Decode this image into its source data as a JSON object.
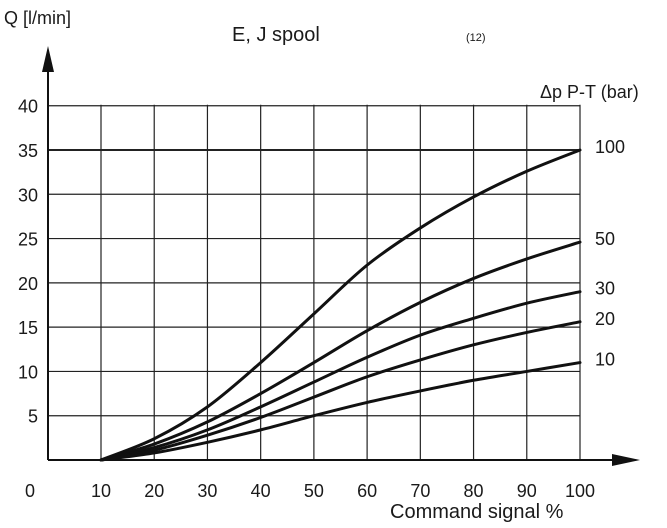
{
  "chart_data": {
    "type": "line",
    "title": "E, J spool",
    "note": "(12)",
    "ylabel": "Q [l/min]",
    "xlabel": "Command signal %",
    "legend_title": "Δp P-T (bar)",
    "x_ticks": [
      "0",
      "10",
      "20",
      "30",
      "40",
      "50",
      "60",
      "70",
      "80",
      "90",
      "100"
    ],
    "y_ticks": [
      "5",
      "10",
      "15",
      "20",
      "25",
      "30",
      "35",
      "40"
    ],
    "xlim": [
      0,
      100
    ],
    "ylim": [
      0,
      40
    ],
    "grid": true,
    "series": [
      {
        "name": "100",
        "x": [
          10,
          20,
          30,
          40,
          50,
          60,
          70,
          80,
          90,
          100
        ],
        "y": [
          0,
          2.4,
          6,
          11,
          16.5,
          22,
          26.2,
          29.7,
          32.6,
          35
        ]
      },
      {
        "name": "50",
        "x": [
          10,
          20,
          30,
          40,
          50,
          60,
          70,
          80,
          90,
          100
        ],
        "y": [
          0,
          1.8,
          4.3,
          7.5,
          11,
          14.6,
          17.8,
          20.5,
          22.7,
          24.6
        ]
      },
      {
        "name": "30",
        "x": [
          10,
          20,
          30,
          40,
          50,
          60,
          70,
          80,
          90,
          100
        ],
        "y": [
          0,
          1.4,
          3.4,
          6,
          8.8,
          11.6,
          14.1,
          16,
          17.7,
          19
        ]
      },
      {
        "name": "20",
        "x": [
          10,
          20,
          30,
          40,
          50,
          60,
          70,
          80,
          90,
          100
        ],
        "y": [
          0,
          1.1,
          2.8,
          4.8,
          7.1,
          9.4,
          11.3,
          13,
          14.4,
          15.6
        ]
      },
      {
        "name": "10",
        "x": [
          10,
          20,
          30,
          40,
          50,
          60,
          70,
          80,
          90,
          100
        ],
        "y": [
          0,
          0.8,
          2,
          3.4,
          5,
          6.5,
          7.8,
          9,
          10,
          11
        ]
      }
    ]
  }
}
